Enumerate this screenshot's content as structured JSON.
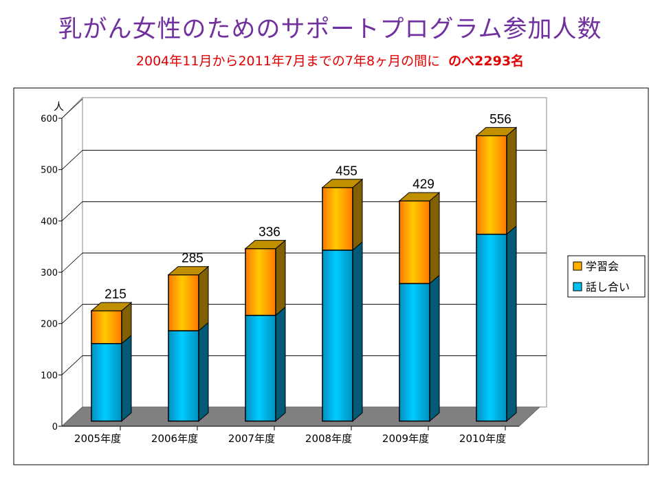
{
  "title": "乳がん女性のためのサポートプログラム参加人数",
  "subtitle": {
    "text": "2004年11月から2011年7月までの7年8ヶ月の間に",
    "total_text": "のべ2293名"
  },
  "colors": {
    "title": "#7030a0",
    "subtitle": "#e00000",
    "talk": "#00c0f0",
    "talk_side": "#005a78",
    "study": "#ffb000",
    "study_side": "#806000",
    "floor": "#808080"
  },
  "chart_data": {
    "type": "bar",
    "stacked": true,
    "three_d": true,
    "ylabel": "人",
    "ylim": [
      0,
      600
    ],
    "yticks": [
      0,
      100,
      200,
      300,
      400,
      500,
      600
    ],
    "grid": true,
    "legend_position": "right",
    "categories": [
      "2005年度",
      "2006年度",
      "2007年度",
      "2008年度",
      "2009年度",
      "2010年度"
    ],
    "series": [
      {
        "name": "話し合い",
        "values": [
          151,
          176,
          206,
          333,
          268,
          364
        ]
      },
      {
        "name": "学習会",
        "values": [
          64,
          109,
          130,
          122,
          161,
          192
        ]
      }
    ],
    "totals": [
      215,
      285,
      336,
      455,
      429,
      556
    ],
    "legend": [
      "学習会",
      "話し合い"
    ]
  }
}
